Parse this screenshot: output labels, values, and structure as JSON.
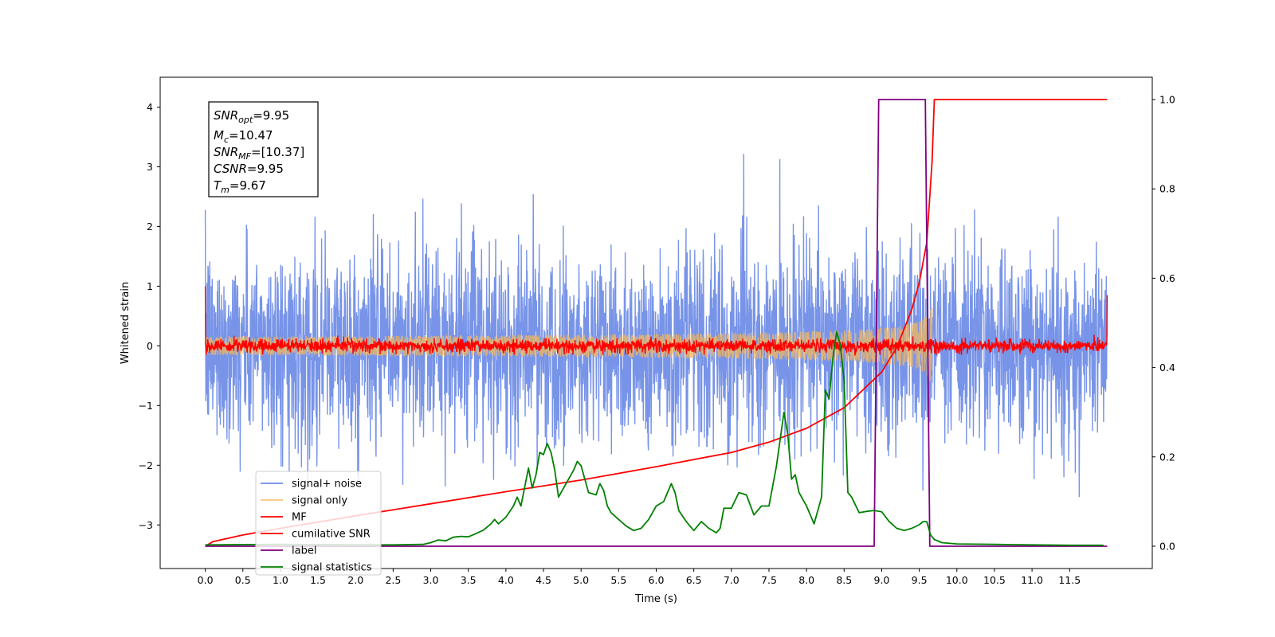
{
  "chart_data": {
    "type": "line",
    "xlabel": "Time (s)",
    "ylabel": "Whitened strain",
    "xlim": [
      -0.6,
      12.6
    ],
    "ylim": [
      -3.73,
      4.5
    ],
    "y2lim": [
      -0.05,
      1.05
    ],
    "grid": false,
    "legend_position": "lower-left",
    "x_ticks": [
      "0.0",
      "0.5",
      "1.0",
      "1.5",
      "2.0",
      "2.5",
      "3.0",
      "3.5",
      "4.0",
      "4.5",
      "5.0",
      "5.5",
      "6.0",
      "6.5",
      "7.0",
      "7.5",
      "8.0",
      "8.5",
      "9.0",
      "9.5",
      "10.0",
      "10.5",
      "11.0",
      "11.5"
    ],
    "y_ticks": [
      "−3",
      "−2",
      "−1",
      "0",
      "1",
      "2",
      "3",
      "4"
    ],
    "y2_ticks": [
      "0.0",
      "0.2",
      "0.4",
      "0.6",
      "0.8",
      "1.0"
    ],
    "annotation": {
      "snr_opt": {
        "sym": "SNR",
        "sub": "opt",
        "value": "=9.95"
      },
      "mc": {
        "sym": "M",
        "sub": "c",
        "value": "=10.47"
      },
      "snr_mf": {
        "sym": "SNR",
        "sub": "MF",
        "value": "=[10.37]"
      },
      "csnr": {
        "sym": "CSNR",
        "value": "=9.95"
      },
      "tm": {
        "sym": "T",
        "sub": "m",
        "value": "=9.67"
      }
    },
    "series": [
      {
        "name": "signal+ noise",
        "color": "#6c8be6",
        "axis": "left",
        "kind": "noise",
        "t_range": [
          0,
          12
        ],
        "std": 0.82,
        "y_range": [
          -3.3,
          3.55
        ]
      },
      {
        "name": "signal only",
        "color": "#f5b85c",
        "axis": "left",
        "kind": "chirp",
        "t_range": [
          0,
          9.67
        ],
        "peak_amplitude": 0.72
      },
      {
        "name": "MF",
        "color": "#ff0000",
        "axis": "left",
        "kind": "noise",
        "t_range": [
          0,
          12
        ],
        "std": 0.055,
        "y_range": [
          -0.15,
          1.0
        ]
      },
      {
        "name": "cumilative SNR",
        "color": "#ff0000",
        "axis": "right",
        "x": [
          0,
          0.1,
          0.5,
          1,
          2,
          3,
          4,
          5,
          6,
          7,
          7.5,
          8,
          8.5,
          9,
          9.2,
          9.4,
          9.5,
          9.6,
          9.67,
          9.7,
          12
        ],
        "y": [
          0,
          0.01,
          0.025,
          0.04,
          0.068,
          0.095,
          0.122,
          0.148,
          0.178,
          0.21,
          0.233,
          0.264,
          0.31,
          0.39,
          0.445,
          0.53,
          0.59,
          0.68,
          0.86,
          1.0,
          1.0
        ]
      },
      {
        "name": "label",
        "color": "#800080",
        "axis": "right",
        "x": [
          0,
          8.9,
          8.96,
          9.58,
          9.64,
          12
        ],
        "y": [
          0,
          0,
          1,
          1,
          0,
          0
        ]
      },
      {
        "name": "signal statistics",
        "color": "#008000",
        "axis": "right",
        "x": [
          0,
          1,
          2,
          2.5,
          2.9,
          3.0,
          3.1,
          3.2,
          3.3,
          3.4,
          3.5,
          3.6,
          3.7,
          3.8,
          3.85,
          3.9,
          4.0,
          4.1,
          4.15,
          4.2,
          4.3,
          4.35,
          4.4,
          4.45,
          4.5,
          4.55,
          4.6,
          4.65,
          4.7,
          4.8,
          4.9,
          4.95,
          5.0,
          5.05,
          5.1,
          5.2,
          5.25,
          5.3,
          5.35,
          5.4,
          5.5,
          5.6,
          5.7,
          5.8,
          5.9,
          6.0,
          6.1,
          6.2,
          6.25,
          6.3,
          6.4,
          6.5,
          6.6,
          6.7,
          6.8,
          6.85,
          6.9,
          7.0,
          7.1,
          7.2,
          7.3,
          7.4,
          7.5,
          7.6,
          7.7,
          7.75,
          7.8,
          7.85,
          7.9,
          8.0,
          8.1,
          8.2,
          8.25,
          8.3,
          8.35,
          8.4,
          8.45,
          8.5,
          8.55,
          8.6,
          8.7,
          8.8,
          8.9,
          9.0,
          9.1,
          9.2,
          9.3,
          9.4,
          9.5,
          9.55,
          9.6,
          9.65,
          9.7,
          9.8,
          10,
          10.5,
          11,
          11.5,
          11.95
        ],
        "y": [
          0.003,
          0.004,
          0.003,
          0.003,
          0.004,
          0.008,
          0.014,
          0.012,
          0.02,
          0.022,
          0.021,
          0.028,
          0.036,
          0.05,
          0.06,
          0.05,
          0.065,
          0.09,
          0.11,
          0.09,
          0.175,
          0.13,
          0.16,
          0.21,
          0.205,
          0.23,
          0.21,
          0.17,
          0.11,
          0.14,
          0.17,
          0.19,
          0.18,
          0.15,
          0.12,
          0.115,
          0.14,
          0.125,
          0.09,
          0.075,
          0.06,
          0.045,
          0.035,
          0.04,
          0.06,
          0.09,
          0.1,
          0.14,
          0.12,
          0.08,
          0.055,
          0.035,
          0.055,
          0.04,
          0.03,
          0.04,
          0.085,
          0.085,
          0.12,
          0.115,
          0.07,
          0.09,
          0.09,
          0.18,
          0.3,
          0.25,
          0.15,
          0.16,
          0.12,
          0.09,
          0.05,
          0.11,
          0.35,
          0.33,
          0.42,
          0.48,
          0.45,
          0.37,
          0.12,
          0.11,
          0.075,
          0.078,
          0.08,
          0.077,
          0.055,
          0.04,
          0.035,
          0.04,
          0.048,
          0.055,
          0.055,
          0.025,
          0.015,
          0.008,
          0.005,
          0.004,
          0.003,
          0.002,
          0.002
        ]
      }
    ]
  }
}
